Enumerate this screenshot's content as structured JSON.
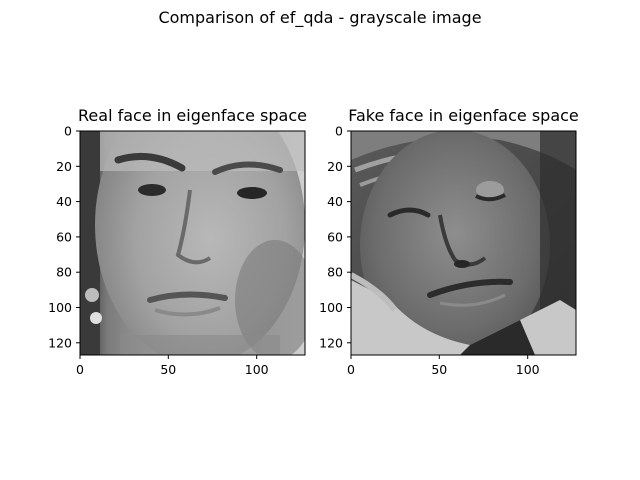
{
  "figure": {
    "title": "Comparison of ef_qda - grayscale image"
  },
  "panels": [
    {
      "title": "Real face in eigenface space",
      "image_label": "grayscale eigenface reconstruction of a real face",
      "x_ticks": [
        "0",
        "50",
        "100"
      ],
      "y_ticks": [
        "0",
        "20",
        "40",
        "60",
        "80",
        "100",
        "120"
      ]
    },
    {
      "title": "Fake face in eigenface space",
      "image_label": "grayscale eigenface reconstruction of a fake face",
      "x_ticks": [
        "0",
        "50",
        "100"
      ],
      "y_ticks": [
        "0",
        "20",
        "40",
        "60",
        "80",
        "100",
        "120"
      ]
    }
  ]
}
